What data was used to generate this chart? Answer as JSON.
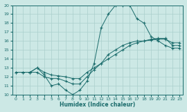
{
  "xlabel": "Humidex (Indice chaleur)",
  "xlim": [
    -0.5,
    23.5
  ],
  "ylim": [
    10,
    20
  ],
  "xticks": [
    0,
    1,
    2,
    3,
    4,
    5,
    6,
    7,
    8,
    9,
    10,
    11,
    12,
    13,
    14,
    15,
    16,
    17,
    18,
    19,
    20,
    21,
    22,
    23
  ],
  "yticks": [
    10,
    11,
    12,
    13,
    14,
    15,
    16,
    17,
    18,
    19,
    20
  ],
  "bg_color": "#cce8e5",
  "line_color": "#1a6b6b",
  "grid_color": "#aacfcc",
  "line1_x": [
    0,
    1,
    2,
    3,
    4,
    5,
    6,
    7,
    8,
    9,
    10,
    11,
    12,
    13,
    14,
    15,
    16,
    17,
    18,
    19,
    20,
    21,
    22,
    23
  ],
  "line1_y": [
    12.5,
    12.5,
    12.5,
    13.0,
    12.5,
    12.2,
    12.1,
    12.0,
    11.8,
    11.8,
    12.5,
    13.0,
    13.5,
    14.0,
    14.5,
    15.0,
    15.5,
    15.8,
    16.0,
    16.2,
    16.3,
    16.3,
    15.5,
    15.5
  ],
  "line2_x": [
    0,
    1,
    2,
    3,
    4,
    5,
    6,
    7,
    8,
    9,
    10,
    11,
    12,
    13,
    14,
    15,
    16,
    17,
    18,
    19,
    20,
    21,
    22,
    23
  ],
  "line2_y": [
    12.5,
    12.5,
    12.5,
    12.5,
    12.0,
    11.8,
    11.8,
    11.5,
    11.2,
    11.2,
    12.0,
    12.8,
    13.5,
    14.5,
    15.0,
    15.5,
    15.8,
    16.0,
    16.0,
    16.1,
    16.2,
    16.2,
    15.8,
    15.8
  ],
  "line3_x": [
    2,
    3,
    4,
    5,
    6,
    7,
    8,
    9,
    10,
    11,
    12,
    13,
    14,
    15,
    16,
    17,
    18,
    19,
    20,
    21,
    22,
    23
  ],
  "line3_y": [
    12.5,
    13.0,
    12.2,
    11.0,
    11.2,
    10.5,
    10.0,
    10.5,
    11.5,
    13.5,
    17.5,
    19.0,
    20.0,
    20.0,
    20.0,
    18.5,
    18.0,
    16.5,
    16.0,
    15.5,
    15.2,
    15.2
  ]
}
